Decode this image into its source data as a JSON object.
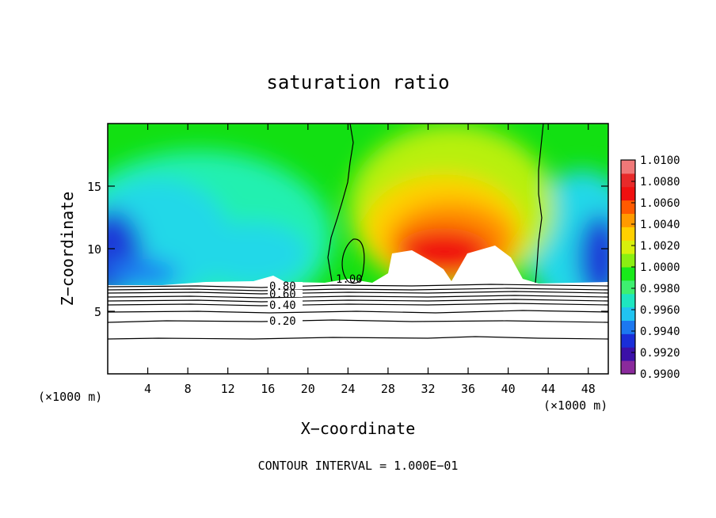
{
  "chart_data": {
    "type": "heatmap",
    "title": "saturation ratio",
    "xlabel": "X−coordinate",
    "ylabel": "Z−coordinate",
    "x_unit_left": "(×1000 m)",
    "x_unit_right": "(×1000 m)",
    "xlim": [
      0,
      50
    ],
    "ylim": [
      0,
      20
    ],
    "x_ticks": [
      4,
      8,
      12,
      16,
      20,
      24,
      28,
      32,
      36,
      40,
      44,
      48
    ],
    "y_ticks": [
      5,
      10,
      15
    ],
    "footer": "CONTOUR INTERVAL = 1.000E−01",
    "colorbar": {
      "labels": [
        "1.0100",
        "1.0080",
        "1.0060",
        "1.0040",
        "1.0020",
        "1.0000",
        "0.9980",
        "0.9960",
        "0.9940",
        "0.9920",
        "0.9900"
      ],
      "min": 0.99,
      "max": 1.01,
      "colors": [
        "#8a2a9c",
        "#3b10a8",
        "#1a2ed8",
        "#1c78f0",
        "#21c4f0",
        "#1ee6c0",
        "#3ef070",
        "#18ea1a",
        "#8aef12",
        "#d8f00c",
        "#ffd000",
        "#ff9a00",
        "#ff5a00",
        "#f01010",
        "#e82a2a",
        "#f07878"
      ]
    },
    "contour_labels": [
      "0.80",
      "0.60",
      "0.40",
      "0.20",
      "1.00"
    ],
    "contour_line_levels": [
      0.2,
      0.4,
      0.6,
      0.8,
      1.0
    ]
  }
}
